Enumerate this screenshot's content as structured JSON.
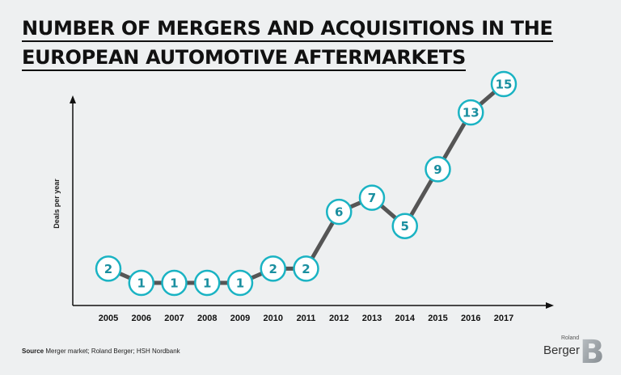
{
  "title_lines": [
    "NUMBER OF MERGERS AND ACQUISITIONS IN THE",
    "EUROPEAN AUTOMOTIVE AFTERMARKETS"
  ],
  "source": {
    "label": "Source",
    "text": "Merger market; Roland Berger; HSH Nordbank"
  },
  "logo": {
    "roland": "Roland",
    "berger": "Berger",
    "mark": "B"
  },
  "colors": {
    "line": "#555555",
    "marker_border": "#1ab3c3",
    "marker_fill": "#ffffff",
    "marker_text": "#1a8fa0",
    "axis": "#111111"
  },
  "chart_data": {
    "type": "line",
    "title": "NUMBER OF MERGERS AND ACQUISITIONS IN THE EUROPEAN AUTOMOTIVE AFTERMARKETS",
    "xlabel": "",
    "ylabel": "Deals per year",
    "categories": [
      "2005",
      "2006",
      "2007",
      "2008",
      "2009",
      "2010",
      "2011",
      "2012",
      "2013",
      "2014",
      "2015",
      "2016",
      "2017"
    ],
    "series": [
      {
        "name": "Deals per year",
        "values": [
          2,
          1,
          1,
          1,
          1,
          2,
          2,
          6,
          7,
          5,
          9,
          13,
          15
        ]
      }
    ],
    "ylim": [
      0,
      15
    ],
    "grid": false,
    "legend": "none",
    "data_labels": true
  }
}
